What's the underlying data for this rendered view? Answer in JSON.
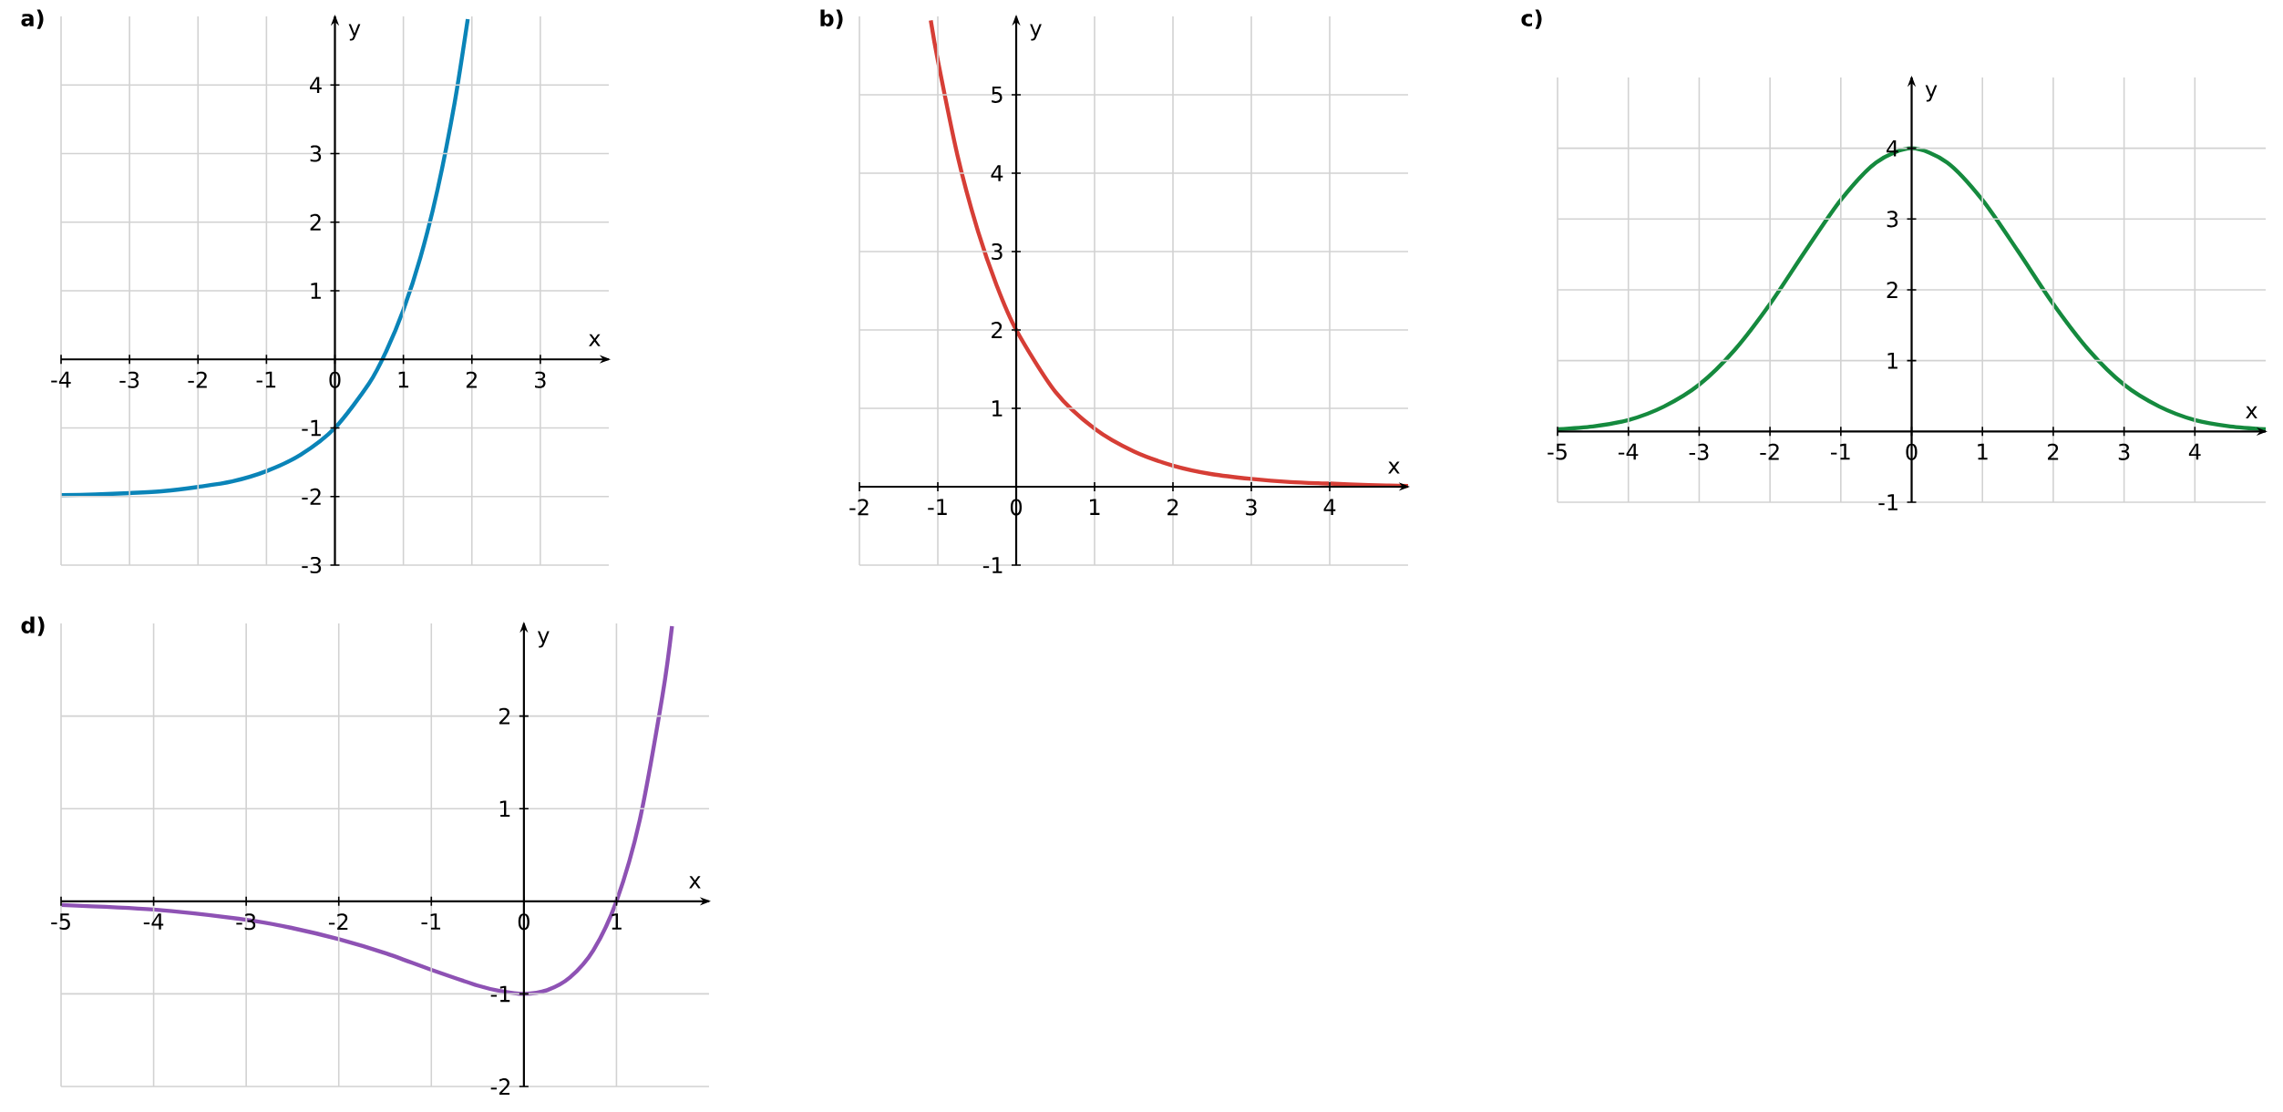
{
  "chart_data": [
    {
      "type": "line",
      "title": "a)",
      "xlabel": "x",
      "ylabel": "y",
      "color": "#0a84b8",
      "x": [
        -4,
        -3.5,
        -3,
        -2.5,
        -2,
        -1.5,
        -1,
        -0.5,
        0,
        0.5,
        0.75,
        1,
        1.25,
        1.5,
        1.75,
        1.94
      ],
      "values": [
        -1.98,
        -1.97,
        -1.95,
        -1.92,
        -1.86,
        -1.78,
        -1.63,
        -1.39,
        -1,
        -0.35,
        0.12,
        0.72,
        1.49,
        2.48,
        3.75,
        4.96
      ],
      "xlim": [
        -4,
        4
      ],
      "ylim": [
        -3,
        5
      ],
      "xticks": [
        -4,
        -3,
        -2,
        -1,
        0,
        1,
        2,
        3
      ],
      "yticks": [
        -3,
        -2,
        -1,
        1,
        2,
        3,
        4
      ],
      "grid": true
    },
    {
      "type": "line",
      "title": "b)",
      "xlabel": "x",
      "ylabel": "y",
      "color": "#d63e36",
      "x": [
        -1.09,
        -1,
        -0.75,
        -0.5,
        -0.25,
        0,
        0.5,
        1,
        1.5,
        2,
        2.5,
        3,
        3.5,
        4,
        4.5,
        5
      ],
      "values": [
        5.95,
        5.44,
        4.23,
        3.3,
        2.57,
        2,
        1.21,
        0.74,
        0.45,
        0.27,
        0.16,
        0.1,
        0.06,
        0.04,
        0.02,
        0.01
      ],
      "xlim": [
        -2,
        5
      ],
      "ylim": [
        -1,
        6
      ],
      "xticks": [
        -2,
        -1,
        0,
        1,
        2,
        3,
        4
      ],
      "yticks": [
        -1,
        1,
        2,
        3,
        4,
        5
      ],
      "grid": true
    },
    {
      "type": "line",
      "title": "c)",
      "xlabel": "x",
      "ylabel": "y",
      "color": "#158a3e",
      "x": [
        -5,
        -4.5,
        -4,
        -3.5,
        -3,
        -2.5,
        -2,
        -1.5,
        -1,
        -0.5,
        0,
        0.5,
        1,
        1.5,
        2,
        2.5,
        3,
        3.5,
        4,
        4.5,
        5
      ],
      "values": [
        0.03,
        0.07,
        0.16,
        0.35,
        0.66,
        1.15,
        1.8,
        2.55,
        3.27,
        3.8,
        4,
        3.8,
        3.27,
        2.55,
        1.8,
        1.15,
        0.66,
        0.35,
        0.16,
        0.07,
        0.03
      ],
      "xlim": [
        -5,
        5
      ],
      "ylim": [
        -1,
        5
      ],
      "xticks": [
        -5,
        -4,
        -3,
        -2,
        -1,
        0,
        1,
        2,
        3,
        4
      ],
      "yticks": [
        -1,
        1,
        2,
        3,
        4
      ],
      "grid": true
    },
    {
      "type": "line",
      "title": "d)",
      "xlabel": "x",
      "ylabel": "y",
      "color": "#8e52b4",
      "x": [
        -5,
        -4,
        -3,
        -2.5,
        -2,
        -1.5,
        -1,
        -0.5,
        -0.25,
        0,
        0.25,
        0.5,
        0.75,
        1,
        1.25,
        1.5,
        1.6
      ],
      "values": [
        -0.04,
        -0.09,
        -0.2,
        -0.29,
        -0.41,
        -0.56,
        -0.74,
        -0.91,
        -0.97,
        -1,
        -0.96,
        -0.82,
        -0.53,
        0,
        0.87,
        2.24,
        2.97
      ],
      "xlim": [
        -5,
        2
      ],
      "ylim": [
        -2,
        3
      ],
      "xticks": [
        -5,
        -4,
        -3,
        -2,
        -1,
        0,
        1
      ],
      "yticks": [
        -2,
        -1,
        1,
        2
      ],
      "grid": true
    }
  ]
}
